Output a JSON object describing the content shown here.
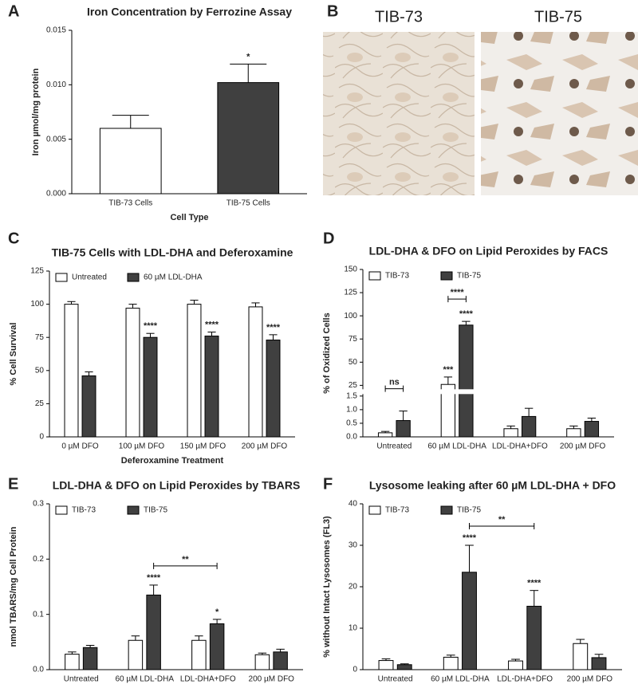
{
  "chart_data": [
    {
      "panel": "A",
      "type": "bar",
      "title": "Iron Concentration by Ferrozine Assay",
      "x_label": "Cell Type",
      "y_label": "Iron µmol/mg protein",
      "categories": [
        "TIB-73 Cells",
        "TIB-75 Cells"
      ],
      "values": [
        0.006,
        0.0102
      ],
      "errors": [
        0.0012,
        0.0017
      ],
      "colors": [
        "#ffffff",
        "#404040"
      ],
      "ylim": [
        0,
        0.015
      ],
      "yticks": [
        {
          "value": 0,
          "label": "0.000"
        },
        {
          "value": 0.005,
          "label": "0.005"
        },
        {
          "value": 0.01,
          "label": "0.010"
        },
        {
          "value": 0.015,
          "label": "0.015"
        }
      ],
      "annotations": [
        {
          "text": "*",
          "series": 0,
          "index": 1
        }
      ]
    },
    {
      "panel": "B",
      "type": "image",
      "labels": [
        "TIB-73",
        "TIB-75"
      ]
    },
    {
      "panel": "C",
      "type": "bar",
      "title": "TIB-75 Cells with LDL-DHA and Deferoxamine",
      "x_label": "Deferoxamine Treatment",
      "y_label": "% Cell Survival",
      "categories": [
        "0 µM DFO",
        "100 µM DFO",
        "150 µM DFO",
        "200 µM DFO"
      ],
      "series": [
        {
          "name": "Untreated",
          "color": "#ffffff",
          "values": [
            100,
            97,
            100,
            98
          ],
          "errors": [
            2,
            3,
            3,
            3
          ]
        },
        {
          "name": "60 µM LDL-DHA",
          "color": "#404040",
          "values": [
            46,
            75,
            76,
            73
          ],
          "errors": [
            3,
            3,
            3,
            4
          ]
        }
      ],
      "ylim": [
        0,
        125
      ],
      "yticks": [
        0,
        25,
        50,
        75,
        100,
        125
      ],
      "legend": "upper left",
      "annotations": [
        {
          "text": "****",
          "series": 1,
          "index": 1
        },
        {
          "text": "****",
          "series": 1,
          "index": 2
        },
        {
          "text": "****",
          "series": 1,
          "index": 3
        }
      ]
    },
    {
      "panel": "D",
      "type": "bar",
      "title": "LDL-DHA & DFO on Lipid Peroxides by FACS",
      "y_label": "% of Oxidized Cells",
      "categories": [
        "Untreated",
        "60 µM LDL-DHA",
        "LDL-DHA+DFO",
        "200 µM DFO"
      ],
      "series": [
        {
          "name": "TIB-73",
          "color": "#ffffff",
          "values": [
            0.15,
            26,
            0.3,
            0.3
          ],
          "errors": [
            0.05,
            8,
            0.1,
            0.1
          ]
        },
        {
          "name": "TIB-75",
          "color": "#404040",
          "values": [
            0.6,
            90,
            0.75,
            0.57
          ],
          "errors": [
            0.35,
            4,
            0.3,
            0.12
          ]
        }
      ],
      "ylim": [
        0,
        150
      ],
      "ybreak": [
        1.6,
        20
      ],
      "yticks": [
        {
          "value": 0,
          "label": "0.0"
        },
        0.5,
        {
          "value": 1,
          "label": "1.0"
        },
        1.5,
        25,
        50,
        75,
        100,
        125,
        150
      ],
      "legend": "upper left",
      "annotations": [
        {
          "text": "***",
          "series": 0,
          "index": 1
        },
        {
          "text": "****",
          "series": 1,
          "index": 1
        }
      ],
      "brackets": [
        {
          "text": "****",
          "from": [
            0,
            1
          ],
          "to": [
            1,
            1
          ]
        },
        {
          "text": "ns",
          "from": [
            0,
            0
          ],
          "to": [
            1,
            0
          ]
        }
      ]
    },
    {
      "panel": "E",
      "type": "bar",
      "title": "LDL-DHA & DFO on Lipid Peroxides by TBARS",
      "y_label": "nmol TBARS/mg Cell Protein",
      "categories": [
        "Untreated",
        "60 µM LDL-DHA",
        "LDL-DHA+DFO",
        "200 µM DFO"
      ],
      "series": [
        {
          "name": "TIB-73",
          "color": "#ffffff",
          "values": [
            0.028,
            0.053,
            0.053,
            0.027
          ],
          "errors": [
            0.004,
            0.008,
            0.008,
            0.003
          ]
        },
        {
          "name": "TIB-75",
          "color": "#404040",
          "values": [
            0.04,
            0.135,
            0.083,
            0.032
          ],
          "errors": [
            0.004,
            0.018,
            0.008,
            0.005
          ]
        }
      ],
      "ylim": [
        0,
        0.3
      ],
      "yticks": [
        {
          "value": 0,
          "label": "0.0"
        },
        0.1,
        0.2,
        0.3
      ],
      "legend": "upper left",
      "annotations": [
        {
          "text": "****",
          "series": 1,
          "index": 1
        },
        {
          "text": "*",
          "series": 1,
          "index": 2
        }
      ],
      "brackets": [
        {
          "text": "**",
          "from": [
            1,
            1
          ],
          "to": [
            1,
            2
          ]
        }
      ]
    },
    {
      "panel": "F",
      "type": "bar",
      "title": "Lysosome leaking after 60 µM LDL-DHA + DFO",
      "y_label": "% without Intact Lysosomes (FL3)",
      "categories": [
        "Untreated",
        "60 µM LDL-DHA",
        "LDL-DHA+DFO",
        "200 µM DFO"
      ],
      "series": [
        {
          "name": "TIB-73",
          "color": "#ffffff",
          "values": [
            2.2,
            3.0,
            2.1,
            6.3
          ],
          "errors": [
            0.4,
            0.5,
            0.4,
            1.0
          ]
        },
        {
          "name": "TIB-75",
          "color": "#404040",
          "values": [
            1.2,
            23.5,
            15.3,
            2.9
          ],
          "errors": [
            0.2,
            6.5,
            3.8,
            0.8
          ]
        }
      ],
      "ylim": [
        0,
        40
      ],
      "yticks": [
        0,
        10,
        20,
        30,
        40
      ],
      "legend": "upper left",
      "annotations": [
        {
          "text": "****",
          "series": 1,
          "index": 1
        },
        {
          "text": "****",
          "series": 1,
          "index": 2
        }
      ],
      "brackets": [
        {
          "text": "**",
          "from": [
            1,
            1
          ],
          "to": [
            1,
            2
          ]
        }
      ]
    }
  ]
}
